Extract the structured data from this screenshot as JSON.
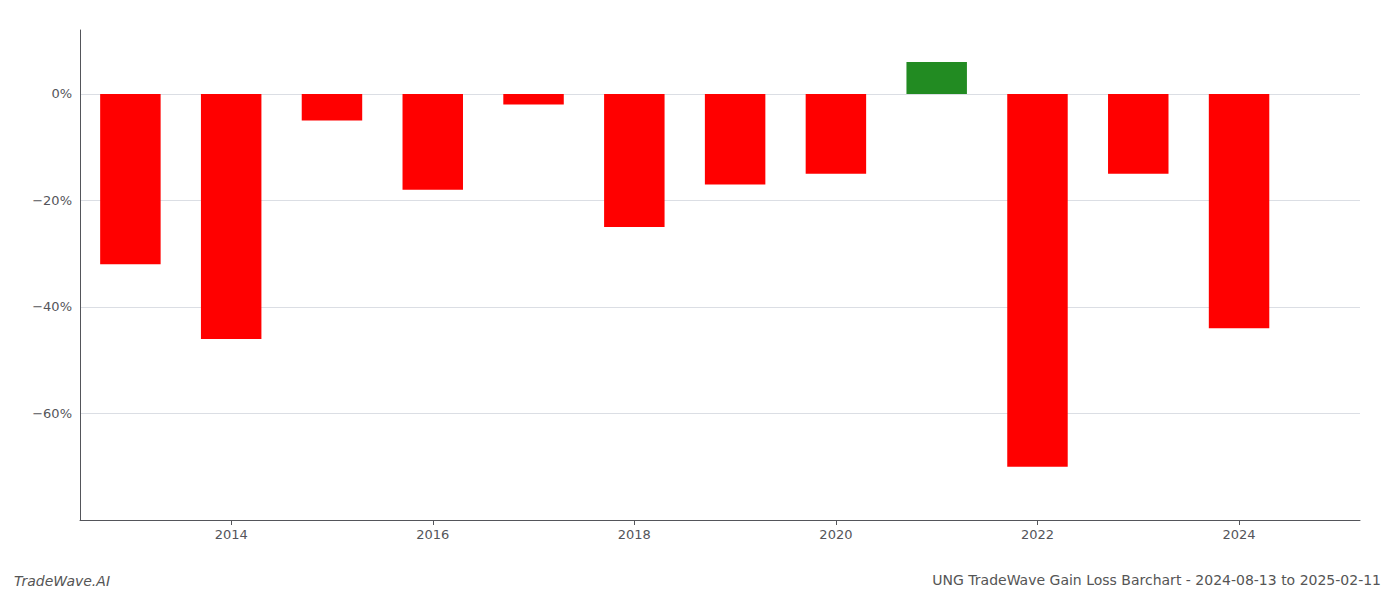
{
  "chart_data": {
    "type": "bar",
    "title": "UNG TradeWave Gain Loss Barchart - 2024-08-13 to 2025-02-11",
    "annotations": [
      "TradeWave.AI"
    ],
    "x": [
      2013,
      2014,
      2015,
      2016,
      2017,
      2018,
      2019,
      2020,
      2021,
      2022,
      2023,
      2024
    ],
    "values": [
      -0.32,
      -0.46,
      -0.05,
      -0.18,
      -0.02,
      -0.25,
      -0.17,
      -0.15,
      0.06,
      -0.7,
      -0.15,
      -0.44
    ],
    "colors": [
      "#FF0000",
      "#FF0000",
      "#FF0000",
      "#FF0000",
      "#FF0000",
      "#FF0000",
      "#FF0000",
      "#FF0000",
      "#228B22",
      "#FF0000",
      "#FF0000",
      "#FF0000"
    ],
    "xlim": [
      2012.5,
      2025.2
    ],
    "xticks": [
      2014,
      2016,
      2018,
      2020,
      2022,
      2024
    ],
    "ylim": [
      -0.8,
      0.12
    ],
    "yticks": [
      {
        "value": 0.0,
        "label": "0%"
      },
      {
        "value": -0.2,
        "label": "−20%"
      },
      {
        "value": -0.4,
        "label": "−40%"
      },
      {
        "value": -0.6,
        "label": "−60%"
      }
    ],
    "grid": true
  }
}
